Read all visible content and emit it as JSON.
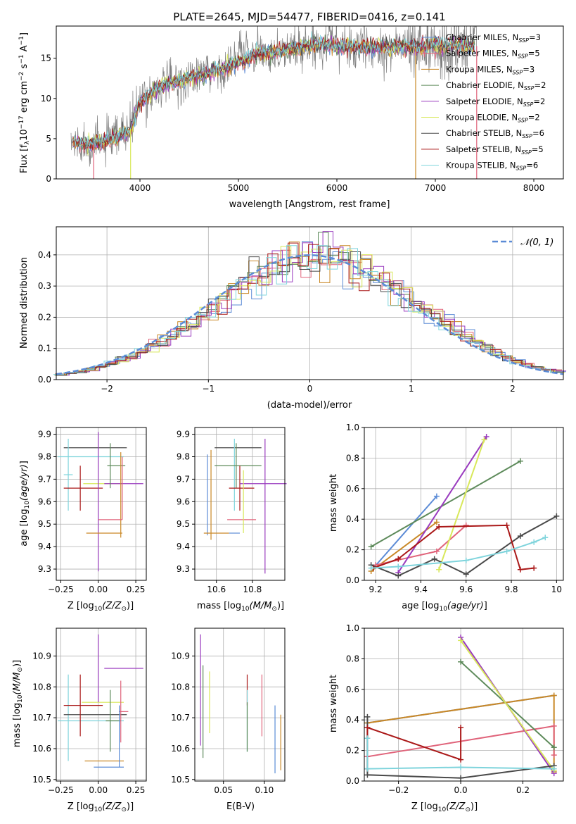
{
  "figure_title": "PLATE=2645, MJD=54477, FIBERID=0416, z=0.141",
  "colors": {
    "Chabrier MILES": "#5b8bd6",
    "Salpeter MILES": "#e0637a",
    "Kroupa MILES": "#c98826",
    "Chabrier ELODIE": "#5d8a5a",
    "Salpeter ELODIE": "#9a3bbf",
    "Kroupa ELODIE": "#d8e85a",
    "Chabrier STELIB": "#4a4a4a",
    "Salpeter STELIB": "#aa1818",
    "Kroupa STELIB": "#7fd4dc",
    "normal": "#5b8bd6"
  },
  "chart_data": [
    {
      "id": "spectrum",
      "type": "line",
      "xlabel": "wavelength [Angstrom, rest frame]",
      "ylabel": "Flux [f_λ 10^-17 erg cm^-2 s^-1 A^-1]",
      "xlim": [
        3150,
        8300
      ],
      "ylim": [
        0,
        19
      ],
      "xticks": [
        4000,
        5000,
        6000,
        7000,
        8000
      ],
      "yticks": [
        0,
        5,
        10,
        15
      ],
      "legend_position": "upper right",
      "series": [
        {
          "name": "Chabrier MILES, N_SSP=3"
        },
        {
          "name": "Salpeter MILES, N_SSP=5"
        },
        {
          "name": "Kroupa MILES, N_SSP=3"
        },
        {
          "name": "Chabrier ELODIE, N_SSP=2"
        },
        {
          "name": "Salpeter ELODIE, N_SSP=2"
        },
        {
          "name": "Kroupa ELODIE, N_SSP=2"
        },
        {
          "name": "Chabrier STELIB, N_SSP=6"
        },
        {
          "name": "Salpeter STELIB, N_SSP=5"
        },
        {
          "name": "Kroupa STELIB, N_SSP=6"
        }
      ],
      "data_trend": {
        "x": [
          3300,
          3500,
          3700,
          3900,
          4000,
          4200,
          4500,
          4800,
          5000,
          5200,
          5500,
          5800,
          6000,
          6300,
          6600,
          6800,
          7000,
          7200,
          7400
        ],
        "y": [
          4.5,
          4.3,
          4.8,
          6.0,
          9.5,
          11.5,
          12.5,
          13.5,
          14.5,
          15.5,
          16.0,
          16.8,
          16.5,
          16.3,
          16.5,
          16.3,
          16.6,
          16.6,
          16.5
        ]
      }
    },
    {
      "id": "residuals",
      "type": "histogram",
      "xlabel": "(data-model)/error",
      "ylabel": "Normed distribution",
      "xlim": [
        -2.5,
        2.5
      ],
      "ylim": [
        0,
        0.49
      ],
      "xticks": [
        -2,
        -1,
        0,
        1,
        2
      ],
      "yticks": [
        0.0,
        0.1,
        0.2,
        0.3,
        0.4
      ],
      "legend": [
        "𝒩(0, 1)"
      ],
      "grid": true,
      "bin_width": 0.1
    },
    {
      "id": "age_vs_Z",
      "type": "errorbar",
      "xlabel": "Z [log10(Z/Z⊙)]",
      "ylabel": "age [log10(age/yr)]",
      "xlim": [
        -0.28,
        0.32
      ],
      "ylim": [
        9.25,
        9.93
      ],
      "xticks": [
        "-0.25",
        "0.00",
        "0.25"
      ],
      "yticks": [
        9.3,
        9.4,
        9.5,
        9.6,
        9.7,
        9.8,
        9.9
      ],
      "grid": true,
      "points": [
        {
          "series": "Chabrier STELIB",
          "x": -0.02,
          "xerr": 0.21,
          "y": 9.84,
          "yerr": 0
        },
        {
          "series": "Kroupa STELIB",
          "x": -0.2,
          "xerr": 0.03,
          "y": 9.72,
          "yerr": 0.16
        },
        {
          "series": "Kroupa STELIB",
          "x": -0.05,
          "xerr": 0.22,
          "y": 9.8,
          "yerr": 0
        },
        {
          "series": "Salpeter STELIB",
          "x": -0.1,
          "xerr": 0.13,
          "y": 9.66,
          "yerr": 0
        },
        {
          "series": "Salpeter STELIB",
          "x": -0.12,
          "xerr": 0,
          "y": 9.66,
          "yerr": 0.1
        },
        {
          "series": "Kroupa ELODIE",
          "x": 0.03,
          "xerr": 0.13,
          "y": 9.68,
          "yerr": 0
        },
        {
          "series": "Salpeter ELODIE",
          "x": 0.17,
          "xerr": 0.13,
          "y": 9.68,
          "yerr": 0
        },
        {
          "series": "Salpeter ELODIE",
          "x": 0.0,
          "xerr": 0,
          "y": 9.6,
          "yerr": 0.31
        },
        {
          "series": "Chabrier ELODIE",
          "x": 0.08,
          "xerr": 0,
          "y": 9.76,
          "yerr": 0.1
        },
        {
          "series": "Chabrier ELODIE",
          "x": 0.12,
          "xerr": 0.06,
          "y": 9.76,
          "yerr": 0
        },
        {
          "series": "Kroupa MILES",
          "x": 0.04,
          "xerr": 0.12,
          "y": 9.46,
          "yerr": 0
        },
        {
          "series": "Kroupa MILES",
          "x": 0.15,
          "xerr": 0,
          "y": 9.63,
          "yerr": 0.19
        },
        {
          "series": "Salpeter MILES",
          "x": 0.08,
          "xerr": 0.08,
          "y": 9.52,
          "yerr": 0
        },
        {
          "series": "Salpeter MILES",
          "x": 0.16,
          "xerr": 0,
          "y": 9.66,
          "yerr": 0.14
        }
      ]
    },
    {
      "id": "age_vs_mass",
      "type": "errorbar",
      "xlabel": "mass [log10(M/M⊙)]",
      "xlim": [
        10.48,
        10.98
      ],
      "ylim": [
        9.25,
        9.93
      ],
      "xticks": [
        10.6,
        10.8
      ],
      "yticks": [
        9.3,
        9.4,
        9.5,
        9.6,
        9.7,
        9.8,
        9.9
      ],
      "grid": true,
      "points": [
        {
          "series": "Chabrier MILES",
          "x": 10.55,
          "xerr": 0,
          "y": 9.63,
          "yerr": 0.18
        },
        {
          "series": "Kroupa MILES",
          "x": 10.57,
          "xerr": 0,
          "y": 9.63,
          "yerr": 0.2
        },
        {
          "series": "Kroupa MILES",
          "x": 10.6,
          "xerr": 0.07,
          "y": 9.46,
          "yerr": 0
        },
        {
          "series": "Chabrier MILES",
          "x": 10.7,
          "xerr": 0.03,
          "y": 9.46,
          "yerr": 0
        },
        {
          "series": "Chabrier STELIB",
          "x": 10.72,
          "xerr": 0.13,
          "y": 9.84,
          "yerr": 0
        },
        {
          "series": "Kroupa STELIB",
          "x": 10.7,
          "xerr": 0,
          "y": 9.72,
          "yerr": 0.16
        },
        {
          "series": "Chabrier ELODIE",
          "x": 10.72,
          "xerr": 0.13,
          "y": 9.76,
          "yerr": 0
        },
        {
          "series": "Chabrier ELODIE",
          "x": 10.71,
          "xerr": 0,
          "y": 9.76,
          "yerr": 0.1
        },
        {
          "series": "Salpeter STELIB",
          "x": 10.74,
          "xerr": 0.07,
          "y": 9.66,
          "yerr": 0
        },
        {
          "series": "Salpeter STELIB",
          "x": 10.73,
          "xerr": 0,
          "y": 9.66,
          "yerr": 0.1
        },
        {
          "series": "Salpeter ELODIE",
          "x": 10.86,
          "xerr": 0.13,
          "y": 9.68,
          "yerr": 0
        },
        {
          "series": "Salpeter ELODIE",
          "x": 10.87,
          "xerr": 0,
          "y": 9.58,
          "yerr": 0.3
        },
        {
          "series": "Salpeter MILES",
          "x": 10.74,
          "xerr": 0.08,
          "y": 9.52,
          "yerr": 0
        },
        {
          "series": "Kroupa ELODIE",
          "x": 10.75,
          "xerr": 0,
          "y": 9.6,
          "yerr": 0.14
        }
      ]
    },
    {
      "id": "weight_vs_age",
      "type": "line",
      "xlabel": "age [log10(age/yr)]",
      "ylabel": "mass weight",
      "xlim": [
        9.15,
        10.03
      ],
      "ylim": [
        0,
        1.0
      ],
      "xticks": [
        9.2,
        9.4,
        9.6,
        9.8,
        10.0
      ],
      "yticks": [
        0.0,
        0.2,
        0.4,
        0.6,
        0.8,
        1.0
      ],
      "grid": true,
      "series": [
        {
          "series": "Chabrier MILES",
          "x": [
            9.19,
            9.47
          ],
          "y": [
            0.08,
            0.55
          ]
        },
        {
          "series": "Kroupa MILES",
          "x": [
            9.18,
            9.47
          ],
          "y": [
            0.06,
            0.38
          ]
        },
        {
          "series": "Salpeter MILES",
          "x": [
            9.2,
            9.47,
            9.6
          ],
          "y": [
            0.1,
            0.19,
            0.36
          ]
        },
        {
          "series": "Chabrier ELODIE",
          "x": [
            9.18,
            9.84
          ],
          "y": [
            0.22,
            0.78
          ]
        },
        {
          "series": "Salpeter ELODIE",
          "x": [
            9.3,
            9.69
          ],
          "y": [
            0.05,
            0.94
          ]
        },
        {
          "series": "Kroupa ELODIE",
          "x": [
            9.48,
            9.68
          ],
          "y": [
            0.07,
            0.92
          ]
        },
        {
          "series": "Chabrier STELIB",
          "x": [
            9.18,
            9.3,
            9.46,
            9.6,
            9.84,
            10.0
          ],
          "y": [
            0.1,
            0.03,
            0.14,
            0.04,
            0.29,
            0.42
          ]
        },
        {
          "series": "Salpeter STELIB",
          "x": [
            9.19,
            9.3,
            9.48,
            9.78,
            9.84,
            9.9
          ],
          "y": [
            0.08,
            0.14,
            0.35,
            0.36,
            0.07,
            0.08
          ]
        },
        {
          "series": "Kroupa STELIB",
          "x": [
            9.18,
            9.3,
            9.6,
            9.78,
            9.9,
            9.95
          ],
          "y": [
            0.08,
            0.09,
            0.13,
            0.19,
            0.25,
            0.28
          ]
        }
      ]
    },
    {
      "id": "mass_vs_Z",
      "type": "errorbar",
      "xlabel": "Z [log10(Z/Z⊙)]",
      "ylabel": "mass [log10(M/M⊙)]",
      "xlim": [
        -0.28,
        0.32
      ],
      "ylim": [
        10.495,
        10.99
      ],
      "xticks": [
        "-0.25",
        "0.00",
        "0.25"
      ],
      "yticks": [
        10.5,
        10.6,
        10.7,
        10.8,
        10.9
      ],
      "grid": true,
      "points": [
        {
          "series": "Kroupa STELIB",
          "x": -0.2,
          "xerr": 0,
          "y": 10.7,
          "yerr": 0.14
        },
        {
          "series": "Kroupa STELIB",
          "x": -0.05,
          "xerr": 0.22,
          "y": 10.69,
          "yerr": 0
        },
        {
          "series": "Chabrier STELIB",
          "x": -0.02,
          "xerr": 0.21,
          "y": 10.71,
          "yerr": 0
        },
        {
          "series": "Salpeter STELIB",
          "x": -0.1,
          "xerr": 0.13,
          "y": 10.74,
          "yerr": 0
        },
        {
          "series": "Salpeter STELIB",
          "x": -0.12,
          "xerr": 0,
          "y": 10.74,
          "yerr": 0.1
        },
        {
          "series": "Kroupa ELODIE",
          "x": 0.03,
          "xerr": 0.14,
          "y": 10.75,
          "yerr": 0
        },
        {
          "series": "Salpeter ELODIE",
          "x": 0.17,
          "xerr": 0.13,
          "y": 10.86,
          "yerr": 0
        },
        {
          "series": "Salpeter ELODIE",
          "x": 0.0,
          "xerr": 0,
          "y": 10.86,
          "yerr": 0.11
        },
        {
          "series": "Chabrier ELODIE",
          "x": 0.1,
          "xerr": 0.05,
          "y": 10.69,
          "yerr": 0
        },
        {
          "series": "Chabrier ELODIE",
          "x": 0.08,
          "xerr": 0,
          "y": 10.69,
          "yerr": 0.1
        },
        {
          "series": "Kroupa MILES",
          "x": 0.04,
          "xerr": 0.13,
          "y": 10.56,
          "yerr": 0
        },
        {
          "series": "Chabrier MILES",
          "x": 0.07,
          "xerr": 0.1,
          "y": 10.54,
          "yerr": 0
        },
        {
          "series": "Salpeter MILES",
          "x": 0.17,
          "xerr": 0.03,
          "y": 10.72,
          "yerr": 0
        },
        {
          "series": "Salpeter MILES",
          "x": 0.15,
          "xerr": 0,
          "y": 10.72,
          "yerr": 0.1
        },
        {
          "series": "Chabrier MILES",
          "x": 0.14,
          "xerr": 0,
          "y": 10.64,
          "yerr": 0.1
        }
      ]
    },
    {
      "id": "mass_vs_EBV",
      "type": "errorbar",
      "xlabel": "E(B-V)",
      "xlim": [
        0.015,
        0.125
      ],
      "ylim": [
        10.495,
        10.99
      ],
      "xticks": [
        "0.05",
        "0.10"
      ],
      "yticks": [
        10.5,
        10.6,
        10.7,
        10.8,
        10.9
      ],
      "grid": true,
      "points": [
        {
          "series": "Salpeter ELODIE",
          "x": 0.022,
          "xerr": 0,
          "y": 10.79,
          "yerr": 0.18
        },
        {
          "series": "Chabrier ELODIE",
          "x": 0.025,
          "xerr": 0,
          "y": 10.72,
          "yerr": 0.15
        },
        {
          "series": "Kroupa ELODIE",
          "x": 0.033,
          "xerr": 0,
          "y": 10.75,
          "yerr": 0.1
        },
        {
          "series": "Salpeter STELIB",
          "x": 0.079,
          "xerr": 0,
          "y": 10.79,
          "yerr": 0.05
        },
        {
          "series": "Kroupa STELIB",
          "x": 0.079,
          "xerr": 0,
          "y": 10.69,
          "yerr": 0.1
        },
        {
          "series": "Chabrier ELODIE",
          "x": 0.079,
          "xerr": 0,
          "y": 10.67,
          "yerr": 0.08
        },
        {
          "series": "Salpeter MILES",
          "x": 0.097,
          "xerr": 0,
          "y": 10.74,
          "yerr": 0.1
        },
        {
          "series": "Chabrier MILES",
          "x": 0.113,
          "xerr": 0,
          "y": 10.63,
          "yerr": 0.11
        },
        {
          "series": "Kroupa MILES",
          "x": 0.12,
          "xerr": 0,
          "y": 10.62,
          "yerr": 0.09
        }
      ]
    },
    {
      "id": "weight_vs_Z",
      "type": "line",
      "xlabel": "Z [log10(Z/Z⊙)]",
      "ylabel": "mass weight",
      "xlim": [
        -0.31,
        0.33
      ],
      "ylim": [
        0,
        1.0
      ],
      "xticks": [
        "-0.2",
        "0.0",
        "0.2"
      ],
      "yticks": [
        0.0,
        0.2,
        0.4,
        0.6,
        0.8,
        1.0
      ],
      "grid": true,
      "series": [
        {
          "series": "Chabrier MILES",
          "x": [
            -0.3,
            0.3
          ],
          "y": [
            0.38,
            0.56
          ]
        },
        {
          "series": "Kroupa MILES",
          "x": [
            -0.3,
            0.3,
            0.3
          ],
          "y": [
            0.38,
            0.56,
            0.06
          ]
        },
        {
          "series": "Salpeter MILES",
          "x": [
            -0.3,
            0.3,
            0.3
          ],
          "y": [
            0.16,
            0.36,
            0.17
          ]
        },
        {
          "series": "Chabrier ELODIE",
          "x": [
            0.0,
            0.3
          ],
          "y": [
            0.78,
            0.22
          ]
        },
        {
          "series": "Salpeter ELODIE",
          "x": [
            0.0,
            0.3
          ],
          "y": [
            0.94,
            0.05
          ]
        },
        {
          "series": "Kroupa ELODIE",
          "x": [
            0.0,
            0.3
          ],
          "y": [
            0.92,
            0.07
          ]
        },
        {
          "series": "Chabrier STELIB",
          "x": [
            -0.3,
            -0.3,
            0.0,
            0.3
          ],
          "y": [
            0.42,
            0.04,
            0.02,
            0.1
          ]
        },
        {
          "series": "Salpeter STELIB",
          "x": [
            -0.3,
            -0.3,
            0.0,
            0.0
          ],
          "y": [
            0.08,
            0.35,
            0.14,
            0.35
          ]
        },
        {
          "series": "Kroupa STELIB",
          "x": [
            -0.3,
            -0.3,
            0.0,
            0.3
          ],
          "y": [
            0.28,
            0.08,
            0.09,
            0.08
          ]
        }
      ]
    }
  ]
}
